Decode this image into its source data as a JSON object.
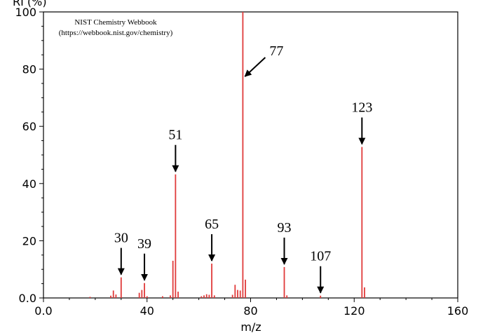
{
  "chart_data": {
    "type": "bar",
    "xlabel": "m/z",
    "ylabel": "RI (%)",
    "xlim": [
      0,
      160
    ],
    "ylim": [
      0,
      100
    ],
    "x_ticks": [
      "0.0",
      "40",
      "80",
      "120",
      "160"
    ],
    "y_ticks": [
      "0.0",
      "20",
      "40",
      "60",
      "80",
      "100"
    ],
    "bar_color": "#e03a3a",
    "credit_lines": [
      "NIST Chemistry Webbook",
      "(https://webbook.nist.gov/chemistry)"
    ],
    "peaks": [
      {
        "mz": 18,
        "ri": 0.4
      },
      {
        "mz": 26,
        "ri": 0.8
      },
      {
        "mz": 27,
        "ri": 2.6
      },
      {
        "mz": 28,
        "ri": 1.2
      },
      {
        "mz": 30,
        "ri": 7.2
      },
      {
        "mz": 37,
        "ri": 1.8
      },
      {
        "mz": 38,
        "ri": 2.8
      },
      {
        "mz": 39,
        "ri": 5.2
      },
      {
        "mz": 40,
        "ri": 0.6
      },
      {
        "mz": 46,
        "ri": 0.6
      },
      {
        "mz": 49,
        "ri": 0.9
      },
      {
        "mz": 50,
        "ri": 13.0
      },
      {
        "mz": 51,
        "ri": 43.2
      },
      {
        "mz": 52,
        "ri": 2.2
      },
      {
        "mz": 61,
        "ri": 0.6
      },
      {
        "mz": 62,
        "ri": 0.9
      },
      {
        "mz": 63,
        "ri": 1.3
      },
      {
        "mz": 64,
        "ri": 1.1
      },
      {
        "mz": 65,
        "ri": 12.0
      },
      {
        "mz": 66,
        "ri": 0.9
      },
      {
        "mz": 73,
        "ri": 1.1
      },
      {
        "mz": 74,
        "ri": 4.6
      },
      {
        "mz": 75,
        "ri": 2.8
      },
      {
        "mz": 76,
        "ri": 2.6
      },
      {
        "mz": 77,
        "ri": 100
      },
      {
        "mz": 78,
        "ri": 6.4
      },
      {
        "mz": 93,
        "ri": 10.8
      },
      {
        "mz": 94,
        "ri": 0.9
      },
      {
        "mz": 107,
        "ri": 0.8
      },
      {
        "mz": 123,
        "ri": 52.8
      },
      {
        "mz": 124,
        "ri": 3.7
      }
    ],
    "annotations": [
      {
        "label": "30",
        "mz": 30,
        "arrow": "down"
      },
      {
        "label": "39",
        "mz": 39,
        "arrow": "down"
      },
      {
        "label": "51",
        "mz": 51,
        "arrow": "down"
      },
      {
        "label": "65",
        "mz": 65,
        "arrow": "down"
      },
      {
        "label": "77",
        "mz": 77,
        "arrow": "diagonal"
      },
      {
        "label": "93",
        "mz": 93,
        "arrow": "down"
      },
      {
        "label": "107",
        "mz": 107,
        "arrow": "down"
      },
      {
        "label": "123",
        "mz": 123,
        "arrow": "down"
      }
    ]
  }
}
